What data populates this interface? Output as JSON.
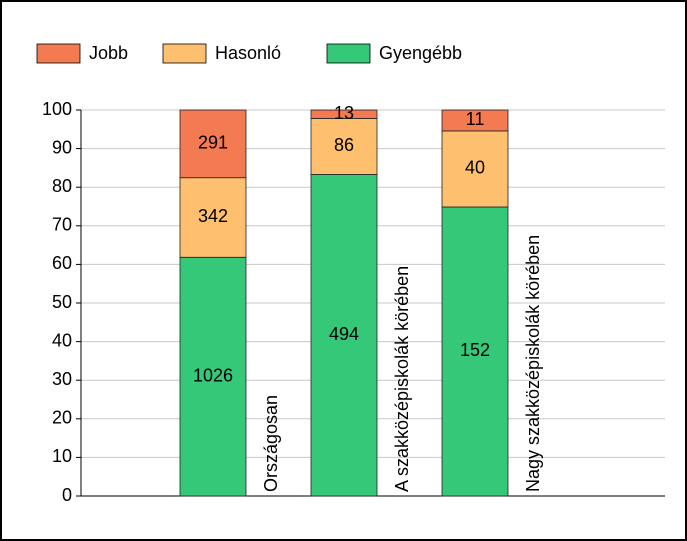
{
  "chart_data": {
    "type": "bar",
    "stack": "percent",
    "categories": [
      "Országosan",
      "A szakközépiskolák körében",
      "Nagy szakközépiskolák körében"
    ],
    "series": [
      {
        "name": "Gyengébb",
        "color": "#34c878",
        "values": [
          1026,
          494,
          152
        ]
      },
      {
        "name": "Hasonló",
        "color": "#fec06e",
        "values": [
          342,
          86,
          40
        ]
      },
      {
        "name": "Jobb",
        "color": "#f47a52",
        "values": [
          291,
          13,
          11
        ]
      }
    ],
    "legend_order": [
      2,
      1,
      0
    ],
    "ylim": [
      0,
      100
    ],
    "yticks": [
      0,
      10,
      20,
      30,
      40,
      50,
      60,
      70,
      80,
      90,
      100
    ],
    "grid": true
  }
}
